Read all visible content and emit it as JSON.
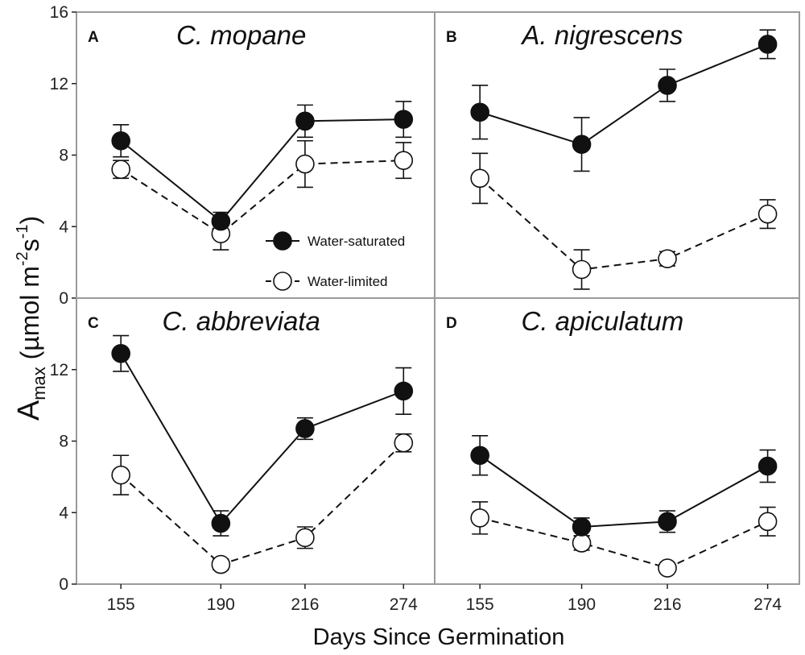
{
  "chart_data": {
    "type": "line",
    "xlabel": "Days Since Germination",
    "ylabel": {
      "base": "A",
      "subscript": "max",
      "rest": " (µmol m",
      "exp1": "-2",
      "mid": "s",
      "exp2": "-1",
      "close": ")"
    },
    "x_categories": [
      "155",
      "190",
      "216",
      "274"
    ],
    "y_ticks": [
      "0",
      "4",
      "8",
      "12",
      "16"
    ],
    "ylim": [
      0,
      16
    ],
    "legend": {
      "items": [
        "Water-saturated",
        "Water-limited"
      ],
      "position": "inside panel A, bottom-right"
    },
    "series_style": {
      "Water-saturated": {
        "marker": "filled-circle",
        "line": "solid",
        "color": "#111111"
      },
      "Water-limited": {
        "marker": "open-circle",
        "line": "dashed",
        "color": "#111111"
      }
    },
    "panels": [
      {
        "letter": "A",
        "title": "C. mopane",
        "series": [
          {
            "name": "Water-saturated",
            "values": [
              8.8,
              4.3,
              9.9,
              10.0
            ],
            "errors": [
              0.9,
              0.5,
              0.9,
              1.0
            ]
          },
          {
            "name": "Water-limited",
            "values": [
              7.2,
              3.6,
              7.5,
              7.7
            ],
            "errors": [
              0.5,
              0.9,
              1.3,
              1.0
            ]
          }
        ]
      },
      {
        "letter": "B",
        "title": "A. nigrescens",
        "series": [
          {
            "name": "Water-saturated",
            "values": [
              10.4,
              8.6,
              11.9,
              14.2
            ],
            "errors": [
              1.5,
              1.5,
              0.9,
              0.8
            ]
          },
          {
            "name": "Water-limited",
            "values": [
              6.7,
              1.6,
              2.2,
              4.7
            ],
            "errors": [
              1.4,
              1.1,
              0.4,
              0.8
            ]
          }
        ]
      },
      {
        "letter": "C",
        "title": "C. abbreviata",
        "series": [
          {
            "name": "Water-saturated",
            "values": [
              12.9,
              3.4,
              8.7,
              10.8
            ],
            "errors": [
              1.0,
              0.7,
              0.6,
              1.3
            ]
          },
          {
            "name": "Water-limited",
            "values": [
              6.1,
              1.1,
              2.6,
              7.9
            ],
            "errors": [
              1.1,
              0.3,
              0.6,
              0.5
            ]
          }
        ]
      },
      {
        "letter": "D",
        "title": "C. apiculatum",
        "series": [
          {
            "name": "Water-saturated",
            "values": [
              7.2,
              3.2,
              3.5,
              6.6
            ],
            "errors": [
              1.1,
              0.5,
              0.6,
              0.9
            ]
          },
          {
            "name": "Water-limited",
            "values": [
              3.7,
              2.3,
              0.9,
              3.5
            ],
            "errors": [
              0.9,
              0.4,
              0.2,
              0.8
            ]
          }
        ]
      }
    ]
  }
}
